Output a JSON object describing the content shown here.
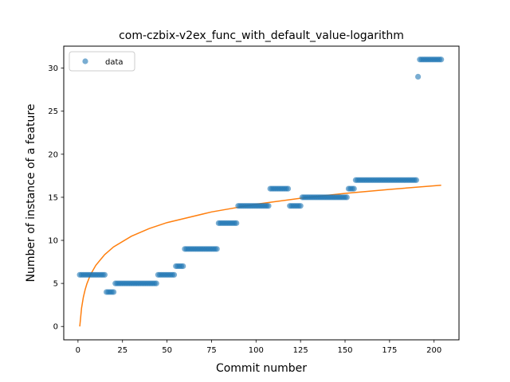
{
  "chart_data": {
    "type": "scatter",
    "title": "com-czbix-v2ex_func_with_default_value-logarithm",
    "xlabel": "Commit number",
    "ylabel": "Number of instance of a feature",
    "xlim": [
      -8,
      214
    ],
    "ylim": [
      -1.55,
      32.55
    ],
    "xticks": [
      0,
      25,
      50,
      75,
      100,
      125,
      150,
      175,
      200
    ],
    "yticks": [
      0,
      5,
      10,
      15,
      20,
      25,
      30
    ],
    "grid": false,
    "legend": {
      "position": "top-left",
      "entries": [
        "data"
      ]
    },
    "colors": {
      "data": "#1f77b4",
      "fit": "#ff7f0e",
      "axes": "#000000",
      "legend_border": "#cccccc"
    },
    "series": [
      {
        "name": "data",
        "kind": "scatter",
        "runs": [
          {
            "x_start": 1,
            "x_end": 16,
            "y": 6
          },
          {
            "x_start": 16,
            "x_end": 21,
            "y": 4
          },
          {
            "x_start": 21,
            "x_end": 45,
            "y": 5
          },
          {
            "x_start": 45,
            "x_end": 55,
            "y": 6
          },
          {
            "x_start": 55,
            "x_end": 60,
            "y": 7
          },
          {
            "x_start": 60,
            "x_end": 79,
            "y": 9
          },
          {
            "x_start": 79,
            "x_end": 90,
            "y": 12
          },
          {
            "x_start": 90,
            "x_end": 108,
            "y": 14
          },
          {
            "x_start": 108,
            "x_end": 119,
            "y": 16
          },
          {
            "x_start": 119,
            "x_end": 126,
            "y": 14
          },
          {
            "x_start": 126,
            "x_end": 152,
            "y": 15
          },
          {
            "x_start": 152,
            "x_end": 156,
            "y": 16
          },
          {
            "x_start": 156,
            "x_end": 191,
            "y": 17
          },
          {
            "x_start": 191,
            "x_end": 192,
            "y": 29
          },
          {
            "x_start": 192,
            "x_end": 205,
            "y": 31
          }
        ]
      },
      {
        "name": "",
        "kind": "line",
        "model": "logarithmic",
        "x_range": [
          1,
          204
        ],
        "points": [
          [
            1,
            0.0
          ],
          [
            2,
            2.14
          ],
          [
            3,
            3.39
          ],
          [
            4,
            4.27
          ],
          [
            5,
            4.96
          ],
          [
            7,
            6.01
          ],
          [
            10,
            7.1
          ],
          [
            15,
            8.35
          ],
          [
            20,
            9.24
          ],
          [
            30,
            10.48
          ],
          [
            40,
            11.37
          ],
          [
            50,
            12.06
          ],
          [
            75,
            13.3
          ],
          [
            100,
            14.2
          ],
          [
            125,
            14.89
          ],
          [
            150,
            15.45
          ],
          [
            175,
            15.92
          ],
          [
            204,
            16.4
          ]
        ]
      }
    ]
  }
}
